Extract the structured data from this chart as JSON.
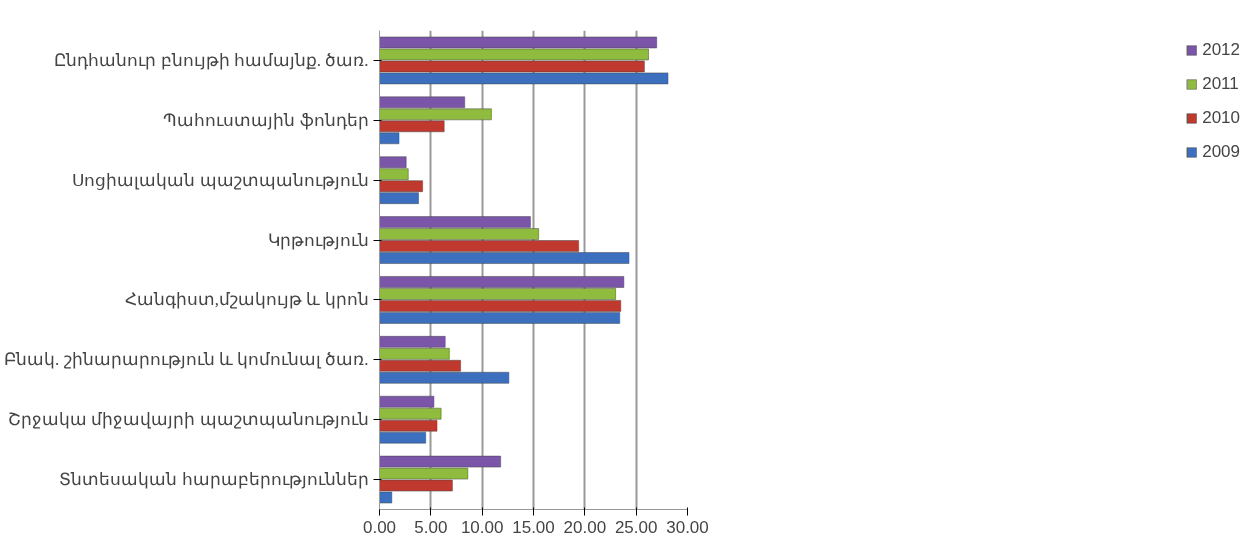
{
  "chart_data": {
    "type": "bar",
    "orientation": "horizontal",
    "categories": [
      "Ընդհանուր բնույթի համայնք. ծառ.",
      "Պահուստային ֆոնդեր",
      "Սոցիալական պաշտպանություն",
      "Կրթություն",
      "Հանգիստ,մշակույթ և կրոն",
      "Բնակ. շինարարություն և կոմունալ ծառ.",
      "Շրջակա միջավայրի պաշտպանություն",
      "Տնտեսական հարաբերություններ"
    ],
    "series": [
      {
        "name": "2009",
        "color": "#3c70bf",
        "values": [
          28.1,
          1.9,
          3.8,
          24.3,
          23.4,
          12.6,
          4.5,
          1.2
        ]
      },
      {
        "name": "2010",
        "color": "#c0392f",
        "values": [
          25.8,
          6.3,
          4.2,
          19.4,
          23.5,
          7.9,
          5.6,
          7.1
        ]
      },
      {
        "name": "2011",
        "color": "#8fbc3f",
        "values": [
          26.2,
          10.9,
          2.8,
          15.5,
          23.0,
          6.8,
          6.0,
          8.6
        ]
      },
      {
        "name": "2012",
        "color": "#7a55a8",
        "values": [
          27.0,
          8.3,
          2.6,
          14.7,
          23.8,
          6.4,
          5.3,
          11.8
        ]
      }
    ],
    "xlim": [
      0,
      30
    ],
    "xticks": [
      {
        "value": 0,
        "label": "0.00"
      },
      {
        "value": 5,
        "label": "5.00"
      },
      {
        "value": 10,
        "label": "10.00"
      },
      {
        "value": 15,
        "label": "15.00"
      },
      {
        "value": 20,
        "label": "20.00"
      },
      {
        "value": 25,
        "label": "25.00"
      },
      {
        "value": 30,
        "label": "30.00"
      }
    ],
    "grid": "x",
    "legend": "right"
  }
}
